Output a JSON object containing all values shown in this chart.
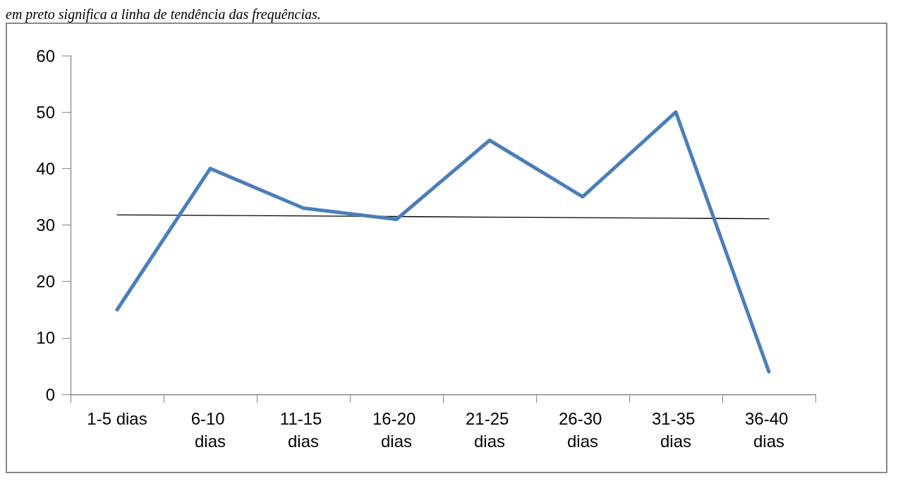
{
  "chart_data": {
    "type": "line",
    "annotations": [
      "em preto significa a linha de tendência das frequências."
    ],
    "categories": [
      "1-5 dias",
      "6-10 dias",
      "11-15 dias",
      "16-20 dias",
      "21-25 dias",
      "26-30 dias",
      "31-35 dias",
      "36-40 dias"
    ],
    "series": [
      {
        "color": "#4a7ebb",
        "values": [
          15,
          40,
          33,
          31,
          45,
          35,
          50,
          4
        ]
      },
      {
        "color": "#000000",
        "values": [
          31.8,
          31.7,
          31.6,
          31.5,
          31.4,
          31.3,
          31.2,
          31.1
        ]
      }
    ],
    "ylim": [
      0,
      60
    ],
    "yticks": [
      0,
      10,
      20,
      30,
      40,
      50,
      60
    ],
    "grid": false,
    "marker": "none",
    "line_style": "solid"
  }
}
